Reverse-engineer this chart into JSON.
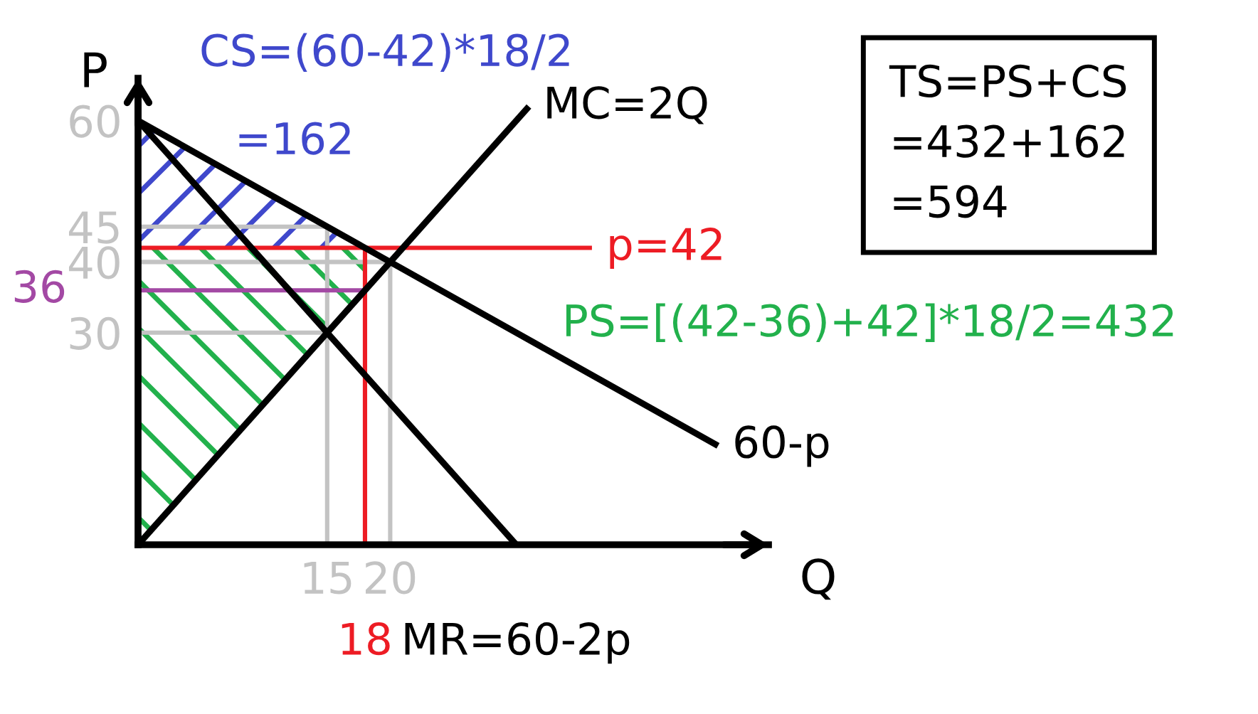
{
  "chart_data": {
    "type": "line",
    "xlabel": "Q",
    "ylabel": "P",
    "xlim": [
      0,
      50
    ],
    "ylim": [
      0,
      66
    ],
    "xticks": [
      15,
      20
    ],
    "yticks": [
      30,
      40,
      45,
      60
    ],
    "series": [
      {
        "color": "#c3c3c3",
        "x": [
          0,
          15,
          15
        ],
        "values": [
          45,
          45,
          0
        ]
      },
      {
        "color": "#c3c3c3",
        "x": [
          0,
          15
        ],
        "values": [
          30,
          30
        ]
      },
      {
        "color": "#c3c3c3",
        "x": [
          0,
          20,
          20
        ],
        "values": [
          40,
          40,
          0
        ]
      },
      {
        "type": "area",
        "color": "#3f48cc",
        "x": [
          0,
          18
        ],
        "values": [
          null,
          null
        ],
        "lower": [
          42,
          42
        ],
        "upper": [
          60,
          42
        ]
      },
      {
        "type": "area",
        "color": "#22b14c",
        "x": [
          0,
          18
        ],
        "values": [
          null,
          null
        ],
        "lower": [
          0,
          36
        ],
        "upper": [
          42,
          42
        ]
      },
      {
        "name": "60-p",
        "color": "#000000",
        "x": [
          0,
          46
        ],
        "values": [
          60,
          14
        ]
      },
      {
        "name": "MR=60-2p",
        "color": "#000000",
        "x": [
          0,
          30
        ],
        "values": [
          60,
          0
        ]
      },
      {
        "name": "MC=2Q",
        "color": "#000000",
        "x": [
          0,
          31
        ],
        "values": [
          0,
          62
        ]
      },
      {
        "name": "p=42",
        "color": "#ed1c24",
        "x": [
          0,
          36
        ],
        "values": [
          42,
          42
        ]
      },
      {
        "name": "18",
        "color": "#ed1c24",
        "x": [
          18,
          18
        ],
        "values": [
          42,
          0
        ]
      },
      {
        "name": "36",
        "color": "#a349a4",
        "x": [
          18,
          0
        ],
        "values": [
          36,
          36
        ]
      }
    ],
    "annotations": [
      "CS=(60-42)*18/2",
      "=162",
      "PS=[(42-36)+42]*18/2=432",
      "TS=PS+CS\n=432+162\n=594"
    ]
  }
}
